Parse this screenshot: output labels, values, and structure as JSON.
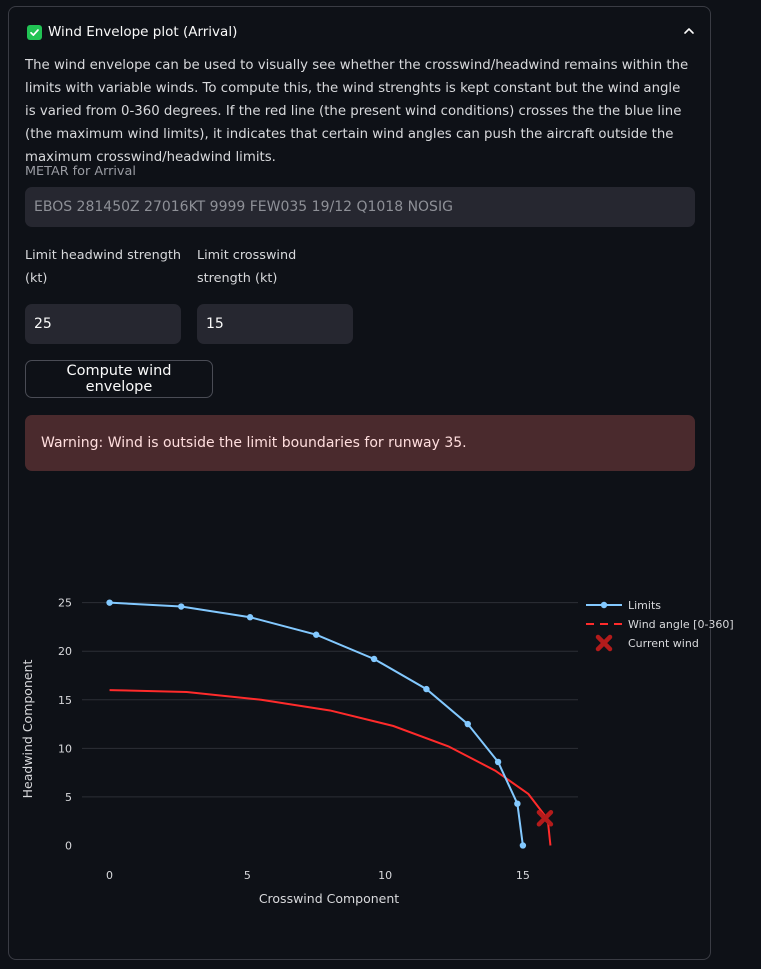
{
  "expander": {
    "title": "Wind Envelope plot (Arrival)",
    "description": "The wind envelope can be used to visually see whether the crosswind/headwind remains within the limits with variable winds. To compute this, the wind strenghts is kept constant but the wind angle is varied from 0-360 degrees. If the red line (the present wind conditions) crosses the the blue line (the maximum wind limits), it indicates that certain wind angles can push the aircraft outside the maximum crosswind/headwind limits."
  },
  "metar": {
    "label": "METAR for Arrival",
    "value": "EBOS 281450Z 27016KT 9999 FEW035 19/12 Q1018 NOSIG"
  },
  "limits": {
    "headwind_label": "Limit headwind strength (kt)",
    "headwind_value": "25",
    "crosswind_label": "Limit crosswind strength (kt)",
    "crosswind_value": "15"
  },
  "compute_button": "Compute wind envelope",
  "warning": "Warning: Wind is outside the limit boundaries for runway 35.",
  "colors": {
    "limits": "#83c9ff",
    "wind": "#ff2b2b",
    "current": "#b31b1b",
    "warning_bg": "#4a2a2d",
    "check": "#21c354"
  },
  "chart_data": {
    "type": "line",
    "xlabel": "Crosswind Component",
    "ylabel": "Headwind Component",
    "xlim": [
      -1,
      17
    ],
    "ylim": [
      -1.6,
      26.2
    ],
    "xticks": [
      0,
      5,
      10,
      15
    ],
    "yticks": [
      0,
      5,
      10,
      15,
      20,
      25
    ],
    "grid": "horizontal",
    "legend_position": "top-right",
    "series": [
      {
        "name": "Limits",
        "style": "line+markers",
        "x": [
          0,
          2.6,
          5.1,
          7.5,
          9.6,
          11.5,
          13.0,
          14.1,
          14.8,
          15.0
        ],
        "y": [
          25.0,
          24.6,
          23.5,
          21.7,
          19.2,
          16.1,
          12.5,
          8.6,
          4.3,
          0.0
        ]
      },
      {
        "name": "Wind angle [0-360]",
        "style": "dashed",
        "x": [
          0,
          2.8,
          5.5,
          8.0,
          10.3,
          12.3,
          14.0,
          15.2,
          15.9,
          16.0
        ],
        "y": [
          16.0,
          15.8,
          15.0,
          13.9,
          12.3,
          10.2,
          7.7,
          5.3,
          2.7,
          0.0
        ]
      },
      {
        "name": "Current wind",
        "style": "x-marker",
        "x": [
          15.8
        ],
        "y": [
          2.8
        ]
      }
    ]
  }
}
